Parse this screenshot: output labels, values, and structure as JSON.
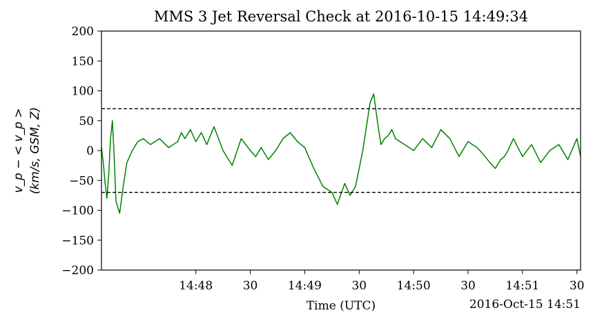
{
  "chart_data": {
    "type": "line",
    "title": "MMS 3 Jet Reversal Check at 2016-10-15 14:49:34",
    "xlabel": "Time (UTC)",
    "xlabel_offset": "2016-Oct-15 14:51",
    "ylabel_line1": "v_p − < v_p >",
    "ylabel_line2": "(km/s, GSM, Z)",
    "x_unit": "time of day (UTC), 2016-10-15",
    "xlim": [
      "14:47:08",
      "14:51:32"
    ],
    "ylim": [
      -200,
      200
    ],
    "x_ticks": [
      {
        "t": "14:48:00",
        "label": "14:48"
      },
      {
        "t": "14:48:30",
        "label": "30"
      },
      {
        "t": "14:49:00",
        "label": "14:49"
      },
      {
        "t": "14:49:30",
        "label": "30"
      },
      {
        "t": "14:50:00",
        "label": "14:50"
      },
      {
        "t": "14:50:30",
        "label": "30"
      },
      {
        "t": "14:51:00",
        "label": "14:51"
      },
      {
        "t": "14:51:30",
        "label": "30"
      }
    ],
    "y_ticks": [
      200,
      150,
      100,
      50,
      0,
      -50,
      -100,
      -150,
      -200
    ],
    "thresholds": [
      70,
      -70
    ],
    "threshold_color": "#000000",
    "grid": false,
    "legend": "none",
    "series": [
      {
        "color": "#008000",
        "x": [
          "14:47:08",
          "14:47:09",
          "14:47:10",
          "14:47:11",
          "14:47:12",
          "14:47:13",
          "14:47:14",
          "14:47:15",
          "14:47:16",
          "14:47:18",
          "14:47:20",
          "14:47:22",
          "14:47:25",
          "14:47:28",
          "14:47:31",
          "14:47:35",
          "14:47:40",
          "14:47:45",
          "14:47:50",
          "14:47:52",
          "14:47:54",
          "14:47:57",
          "14:48:00",
          "14:48:03",
          "14:48:06",
          "14:48:10",
          "14:48:15",
          "14:48:20",
          "14:48:25",
          "14:48:30",
          "14:48:33",
          "14:48:36",
          "14:48:40",
          "14:48:44",
          "14:48:48",
          "14:48:52",
          "14:48:56",
          "14:49:00",
          "14:49:05",
          "14:49:10",
          "14:49:15",
          "14:49:18",
          "14:49:22",
          "14:49:25",
          "14:49:28",
          "14:49:30",
          "14:49:32",
          "14:49:34",
          "14:49:36",
          "14:49:38",
          "14:49:40",
          "14:49:42",
          "14:49:44",
          "14:49:46",
          "14:49:48",
          "14:49:50",
          "14:49:55",
          "14:50:00",
          "14:50:05",
          "14:50:10",
          "14:50:15",
          "14:50:20",
          "14:50:25",
          "14:50:30",
          "14:50:35",
          "14:50:38",
          "14:50:42",
          "14:50:45",
          "14:50:48",
          "14:50:50",
          "14:50:52",
          "14:50:55",
          "14:51:00",
          "14:51:05",
          "14:51:10",
          "14:51:15",
          "14:51:20",
          "14:51:25",
          "14:51:30",
          "14:51:32"
        ],
        "values": [
          5,
          -20,
          -55,
          -80,
          -40,
          20,
          50,
          -10,
          -85,
          -105,
          -60,
          -20,
          0,
          15,
          20,
          10,
          20,
          5,
          15,
          30,
          20,
          35,
          15,
          30,
          10,
          40,
          0,
          -25,
          20,
          0,
          -10,
          5,
          -15,
          0,
          20,
          30,
          15,
          5,
          -30,
          -60,
          -70,
          -90,
          -55,
          -75,
          -60,
          -30,
          0,
          40,
          80,
          95,
          50,
          10,
          20,
          25,
          35,
          20,
          10,
          0,
          20,
          5,
          35,
          20,
          -10,
          15,
          5,
          -5,
          -20,
          -30,
          -15,
          -10,
          0,
          20,
          -10,
          10,
          -20,
          0,
          10,
          -15,
          20,
          -10
        ]
      }
    ]
  }
}
